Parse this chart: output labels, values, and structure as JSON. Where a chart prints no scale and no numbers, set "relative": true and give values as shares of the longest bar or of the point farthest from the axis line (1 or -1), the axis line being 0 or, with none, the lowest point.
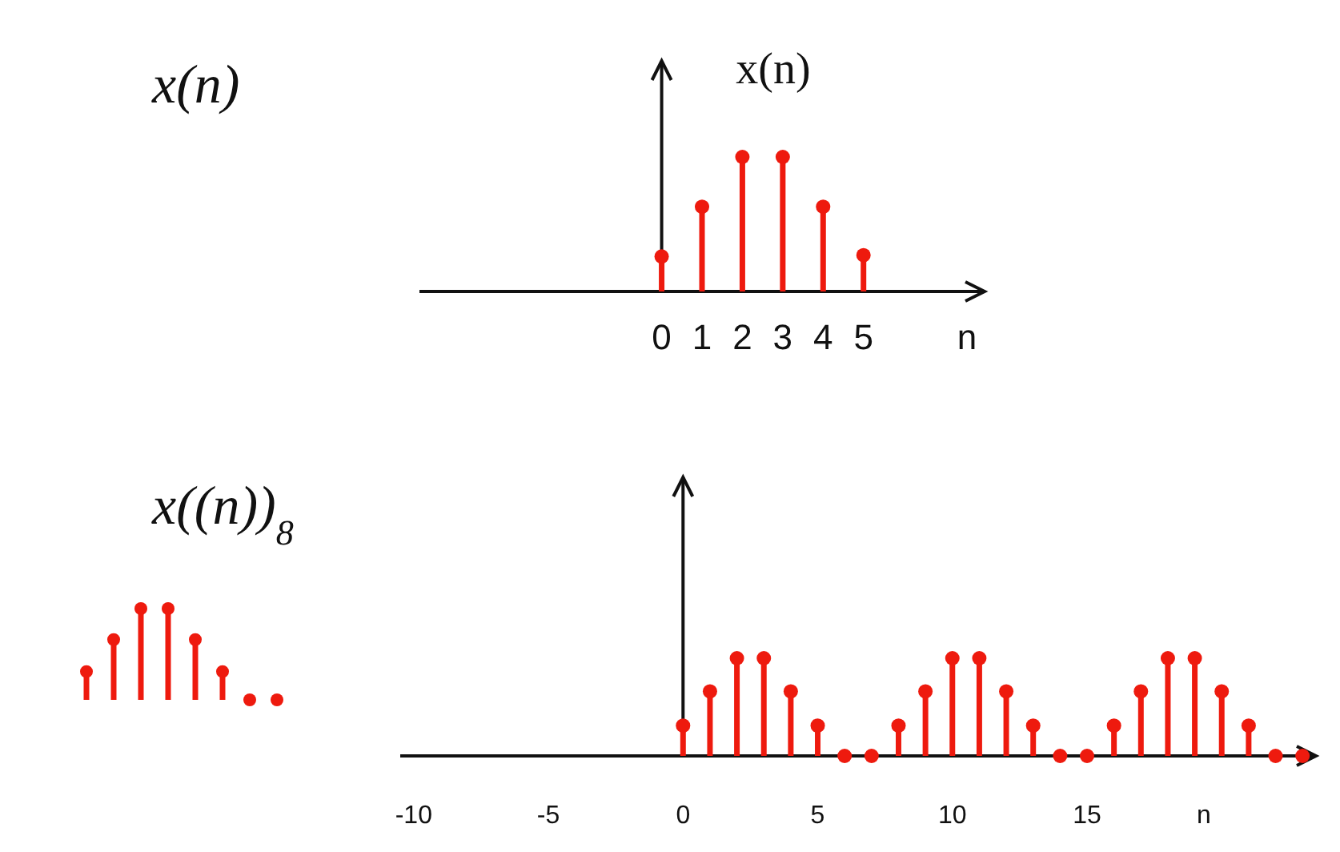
{
  "chart_data": [
    {
      "type": "lollipop",
      "title": "x(n)",
      "ylabel": "x(n)",
      "xlabel": "n",
      "relative": true,
      "marker": "circle",
      "color": "#ee1a0e",
      "x": [
        0,
        1,
        2,
        3,
        4,
        5
      ],
      "values": [
        0.26,
        0.63,
        1,
        1,
        0.63,
        0.27
      ],
      "xlim": [
        -6,
        8
      ],
      "xticks": [
        0,
        1,
        2,
        3,
        4,
        5
      ]
    },
    {
      "type": "lollipop",
      "title": "x((n))$_{8}$",
      "xlabel": "n",
      "relative": true,
      "marker": "circle",
      "color": "#ee1a0e",
      "x": [
        0,
        1,
        2,
        3,
        4,
        5,
        6,
        7,
        8,
        9,
        10,
        11,
        12,
        13,
        14,
        15,
        16,
        17,
        18,
        19,
        20,
        21,
        22,
        23
      ],
      "values": [
        0.31,
        0.66,
        1,
        1,
        0.66,
        0.31,
        0,
        0,
        0.31,
        0.66,
        1,
        1,
        0.66,
        0.31,
        0,
        0,
        0.31,
        0.66,
        1,
        1,
        0.66,
        0.31,
        0,
        0
      ],
      "xlim": [
        -10.5,
        23.5
      ],
      "xticks": [
        -10,
        -5,
        0,
        5,
        10,
        15
      ]
    }
  ]
}
